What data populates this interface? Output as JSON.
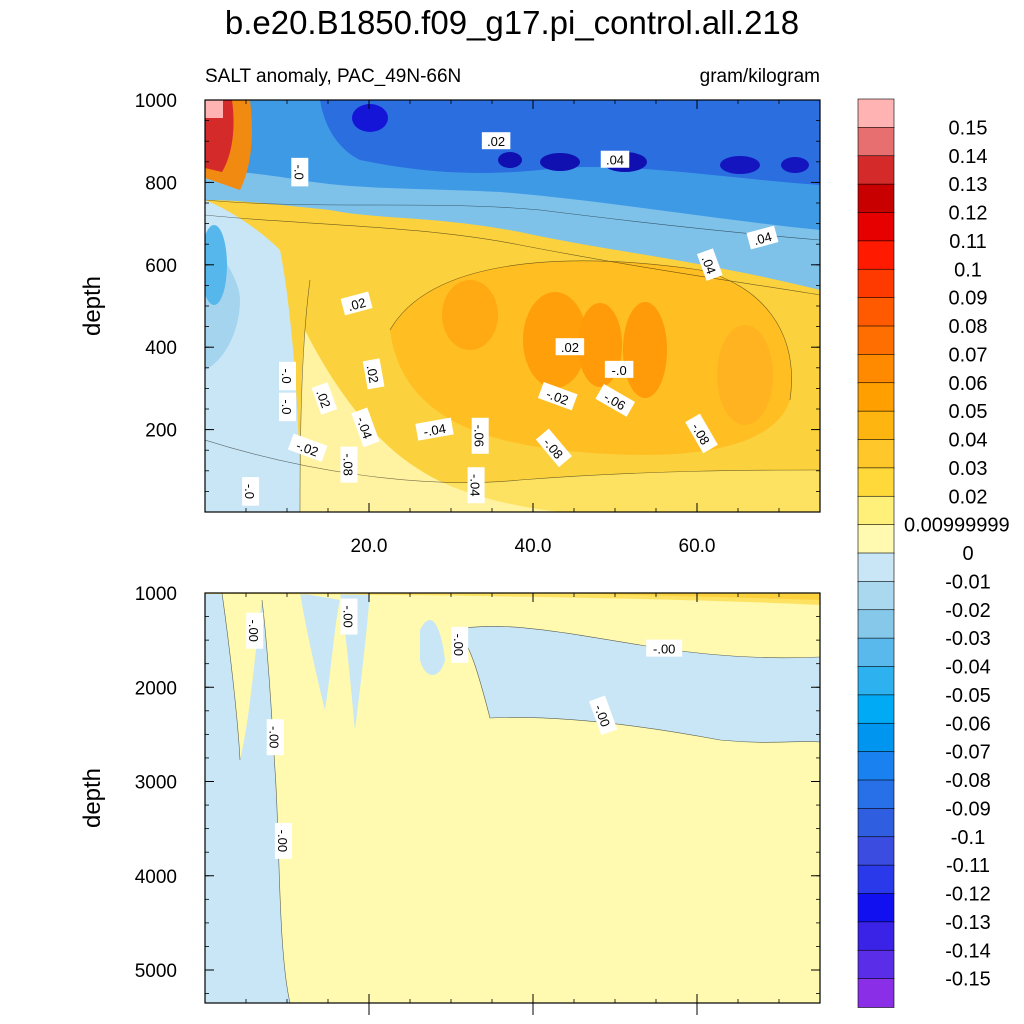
{
  "title": "b.e20.B1850.f09_g17.pi_control.all.218",
  "chart_data": [
    {
      "type": "contour",
      "panel": "upper",
      "subtitle_left": "SALT anomaly, PAC_49N-66N",
      "subtitle_right": "gram/kilogram",
      "ylabel": "depth",
      "ylim": [
        1000,
        0
      ],
      "xlim": [
        0,
        75
      ],
      "xticks": [
        "20.0",
        "40.0",
        "60.0"
      ],
      "xtick_values": [
        20,
        40,
        60
      ],
      "yticks": [
        "200",
        "400",
        "600",
        "800",
        "1000"
      ],
      "ytick_values": [
        200,
        400,
        600,
        800,
        1000
      ],
      "contour_labels": [
        {
          "text": "-.0",
          "x": 5.5,
          "y": 50,
          "rot": 90
        },
        {
          "text": "-.08",
          "x": 17.5,
          "y": 115,
          "rot": 90
        },
        {
          "text": "-.04",
          "x": 33,
          "y": 65,
          "rot": 90
        },
        {
          "text": "-.02",
          "x": 12.5,
          "y": 155,
          "rot": 20
        },
        {
          "text": "-.06",
          "x": 33.5,
          "y": 185,
          "rot": 90
        },
        {
          "text": "-.08",
          "x": 42.5,
          "y": 155,
          "rot": 50
        },
        {
          "text": "-.08",
          "x": 60.5,
          "y": 190,
          "rot": 60
        },
        {
          "text": "-.04",
          "x": 19.5,
          "y": 205,
          "rot": 70
        },
        {
          "text": "-.04",
          "x": 28,
          "y": 200,
          "rot": -10
        },
        {
          "text": "-.0",
          "x": 10,
          "y": 255,
          "rot": 90
        },
        {
          "text": ".02",
          "x": 14.5,
          "y": 275,
          "rot": 70
        },
        {
          "text": "-.02",
          "x": 43,
          "y": 280,
          "rot": 20
        },
        {
          "text": "-.06",
          "x": 50,
          "y": 270,
          "rot": 30
        },
        {
          "text": "-.0",
          "x": 10,
          "y": 330,
          "rot": 90
        },
        {
          "text": ".02",
          "x": 20.5,
          "y": 335,
          "rot": 80
        },
        {
          "text": "-.0",
          "x": 50.5,
          "y": 345,
          "rot": 0
        },
        {
          "text": ".02",
          "x": 44.5,
          "y": 400,
          "rot": 0
        },
        {
          "text": ".02",
          "x": 18.5,
          "y": 505,
          "rot": -15
        },
        {
          "text": ".04",
          "x": 61.5,
          "y": 600,
          "rot": 70
        },
        {
          "text": ".04",
          "x": 68,
          "y": 665,
          "rot": -15
        },
        {
          "text": "-.0",
          "x": 11.5,
          "y": 825,
          "rot": 90
        },
        {
          "text": ".04",
          "x": 50,
          "y": 855,
          "rot": 0
        },
        {
          "text": ".02",
          "x": 35.5,
          "y": 900,
          "rot": 0
        }
      ]
    },
    {
      "type": "contour",
      "panel": "lower",
      "ylabel": "depth",
      "ylim": [
        1000,
        5350
      ],
      "xlim": [
        0,
        75
      ],
      "yticks": [
        "1000",
        "2000",
        "3000",
        "4000",
        "5000"
      ],
      "ytick_values": [
        1000,
        2000,
        3000,
        4000,
        5000
      ],
      "contour_labels": [
        {
          "text": "-.00",
          "x": 6,
          "y": 1400,
          "rot": 90
        },
        {
          "text": "-.00",
          "x": 17.5,
          "y": 1250,
          "rot": 90
        },
        {
          "text": "-.00",
          "x": 31,
          "y": 1550,
          "rot": 90
        },
        {
          "text": "-.00",
          "x": 56,
          "y": 1590,
          "rot": 0
        },
        {
          "text": "-.00",
          "x": 48.5,
          "y": 2300,
          "rot": 70
        },
        {
          "text": "-.00",
          "x": 8.5,
          "y": 2530,
          "rot": 90
        },
        {
          "text": "-.00",
          "x": 9.5,
          "y": 3630,
          "rot": 90
        }
      ]
    }
  ],
  "colorbar": {
    "levels": [
      "0.15",
      "0.14",
      "0.13",
      "0.12",
      "0.11",
      "0.1",
      "0.09",
      "0.08",
      "0.07",
      "0.06",
      "0.05",
      "0.04",
      "0.03",
      "0.02",
      "0.00999999",
      "0",
      "-0.01",
      "-0.02",
      "-0.03",
      "-0.04",
      "-0.05",
      "-0.06",
      "-0.07",
      "-0.08",
      "-0.09",
      "-0.1",
      "-0.11",
      "-0.12",
      "-0.13",
      "-0.14",
      "-0.15"
    ],
    "colors": [
      "#ffb3b3",
      "#e86f6f",
      "#d42a2a",
      "#c80000",
      "#e60000",
      "#ff1a00",
      "#ff3a00",
      "#ff5a00",
      "#ff6e00",
      "#ff8a00",
      "#ffa000",
      "#ffb50f",
      "#ffc72a",
      "#ffd93a",
      "#fff07a",
      "#fffab0",
      "#c8e6f5",
      "#a9d8ef",
      "#86c8ea",
      "#5ab9ec",
      "#2db2ef",
      "#00aaf5",
      "#0096f0",
      "#1a82f0",
      "#2870e8",
      "#2f5ee0",
      "#3a4de0",
      "#2a3aea",
      "#1010f0",
      "#3a22e6",
      "#5a2ee8",
      "#8a2ee8"
    ]
  }
}
